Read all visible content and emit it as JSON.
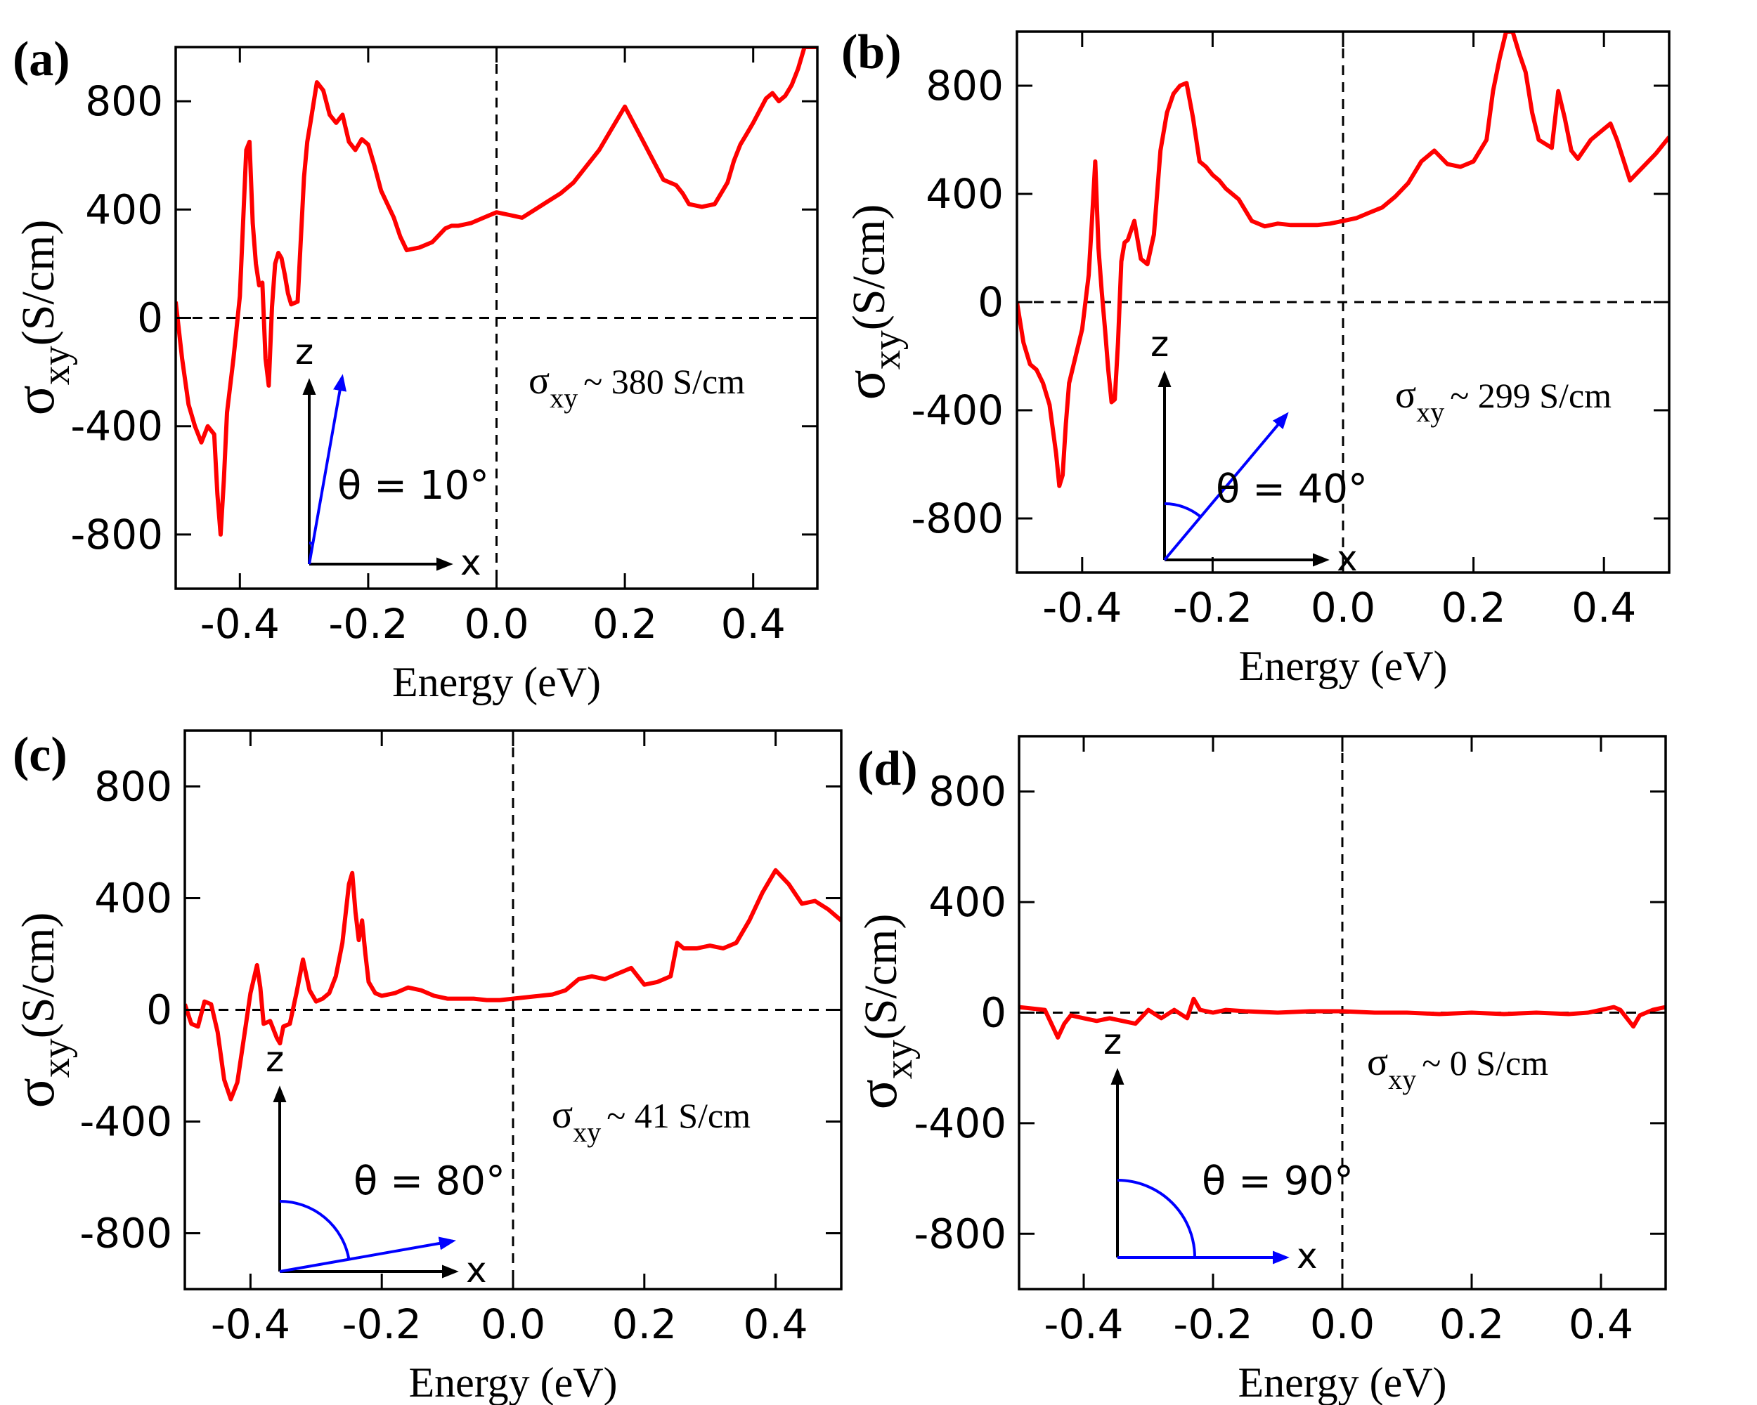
{
  "figure": {
    "axis_titles": {
      "xlabel": "Energy (eV)",
      "ylabel_symbol": "σ",
      "ylabel_subscript": "xy",
      "ylabel_unit": "(S/cm)"
    },
    "inset_axis_labels": {
      "z": "z",
      "x": "x"
    },
    "annotation_prefix": "σ",
    "annotation_subscript": "xy",
    "colors": {
      "curve": "#ff0000",
      "vector": "#0000ff",
      "axes": "#000000"
    }
  },
  "chart_data": [
    {
      "type": "line",
      "panel_label": "(a)",
      "xlabel": "Energy (eV)",
      "ylabel": "σxy(S/cm)",
      "xlim": [
        -0.5,
        0.5
      ],
      "ylim": [
        -1000,
        1000
      ],
      "xticks": [
        -0.4,
        -0.2,
        0.0,
        0.2,
        0.4
      ],
      "xtick_labels": [
        "-0.4",
        "-0.2",
        "0.0",
        "0.2",
        "0.4"
      ],
      "yticks": [
        -800,
        -400,
        0,
        400,
        800
      ],
      "ytick_labels": [
        "-800",
        "-400",
        "0",
        "400",
        "800"
      ],
      "annotation_value": "~ 380 S/cm",
      "theta_label": "θ = 10°",
      "theta_deg": 10,
      "series": [
        {
          "name": "σxy",
          "x": [
            -0.5,
            -0.49,
            -0.48,
            -0.47,
            -0.46,
            -0.45,
            -0.44,
            -0.435,
            -0.43,
            -0.425,
            -0.42,
            -0.41,
            -0.4,
            -0.39,
            -0.385,
            -0.38,
            -0.375,
            -0.37,
            -0.365,
            -0.36,
            -0.355,
            -0.35,
            -0.345,
            -0.34,
            -0.335,
            -0.33,
            -0.325,
            -0.32,
            -0.31,
            -0.3,
            -0.295,
            -0.29,
            -0.28,
            -0.27,
            -0.26,
            -0.25,
            -0.24,
            -0.235,
            -0.23,
            -0.22,
            -0.21,
            -0.2,
            -0.19,
            -0.18,
            -0.17,
            -0.16,
            -0.15,
            -0.14,
            -0.12,
            -0.1,
            -0.08,
            -0.07,
            -0.06,
            -0.04,
            -0.02,
            0.0,
            0.02,
            0.04,
            0.06,
            0.08,
            0.1,
            0.12,
            0.14,
            0.16,
            0.18,
            0.2,
            0.22,
            0.24,
            0.26,
            0.28,
            0.29,
            0.3,
            0.32,
            0.34,
            0.36,
            0.37,
            0.38,
            0.39,
            0.4,
            0.42,
            0.43,
            0.44,
            0.45,
            0.46,
            0.47,
            0.48,
            0.49,
            0.5
          ],
          "y": [
            60,
            -150,
            -320,
            -400,
            -460,
            -400,
            -430,
            -650,
            -800,
            -600,
            -350,
            -150,
            80,
            620,
            650,
            350,
            200,
            120,
            130,
            -150,
            -250,
            40,
            200,
            240,
            220,
            160,
            90,
            50,
            60,
            520,
            650,
            720,
            870,
            840,
            750,
            720,
            750,
            700,
            650,
            620,
            660,
            640,
            560,
            470,
            420,
            370,
            300,
            250,
            260,
            280,
            330,
            340,
            340,
            350,
            370,
            390,
            380,
            370,
            400,
            430,
            460,
            500,
            560,
            620,
            700,
            780,
            690,
            600,
            510,
            490,
            460,
            420,
            410,
            420,
            500,
            580,
            640,
            680,
            720,
            810,
            830,
            800,
            820,
            860,
            920,
            1000,
            1000,
            1000
          ]
        }
      ]
    },
    {
      "type": "line",
      "panel_label": "(b)",
      "xlabel": "Energy (eV)",
      "ylabel": "σxy(S/cm)",
      "xlim": [
        -0.5,
        0.5
      ],
      "ylim": [
        -1000,
        1000
      ],
      "xticks": [
        -0.4,
        -0.2,
        0.0,
        0.2,
        0.4
      ],
      "xtick_labels": [
        "-0.4",
        "-0.2",
        "0.0",
        "0.2",
        "0.4"
      ],
      "yticks": [
        -800,
        -400,
        0,
        400,
        800
      ],
      "ytick_labels": [
        "-800",
        "-400",
        "0",
        "400",
        "800"
      ],
      "annotation_value": "~ 299 S/cm",
      "theta_label": "θ = 40°",
      "theta_deg": 40,
      "series": [
        {
          "name": "σxy",
          "x": [
            -0.5,
            -0.49,
            -0.48,
            -0.47,
            -0.46,
            -0.45,
            -0.44,
            -0.435,
            -0.43,
            -0.425,
            -0.42,
            -0.41,
            -0.4,
            -0.39,
            -0.385,
            -0.38,
            -0.375,
            -0.37,
            -0.365,
            -0.36,
            -0.355,
            -0.35,
            -0.345,
            -0.34,
            -0.335,
            -0.33,
            -0.32,
            -0.31,
            -0.3,
            -0.29,
            -0.28,
            -0.27,
            -0.26,
            -0.25,
            -0.24,
            -0.23,
            -0.22,
            -0.21,
            -0.2,
            -0.19,
            -0.18,
            -0.16,
            -0.14,
            -0.12,
            -0.1,
            -0.08,
            -0.06,
            -0.04,
            -0.02,
            0.0,
            0.02,
            0.04,
            0.06,
            0.08,
            0.1,
            0.12,
            0.14,
            0.16,
            0.18,
            0.2,
            0.22,
            0.23,
            0.24,
            0.25,
            0.26,
            0.27,
            0.28,
            0.29,
            0.3,
            0.32,
            0.33,
            0.34,
            0.35,
            0.36,
            0.38,
            0.4,
            0.41,
            0.42,
            0.44,
            0.46,
            0.48,
            0.5
          ],
          "y": [
            0,
            -150,
            -230,
            -250,
            -300,
            -380,
            -560,
            -680,
            -640,
            -450,
            -300,
            -200,
            -100,
            100,
            300,
            520,
            200,
            40,
            -100,
            -250,
            -370,
            -360,
            -150,
            150,
            220,
            230,
            300,
            160,
            140,
            250,
            560,
            700,
            770,
            800,
            810,
            680,
            520,
            500,
            470,
            450,
            420,
            380,
            300,
            280,
            290,
            285,
            285,
            285,
            290,
            300,
            310,
            330,
            350,
            390,
            440,
            520,
            560,
            510,
            500,
            520,
            600,
            780,
            900,
            1000,
            1000,
            920,
            850,
            700,
            600,
            570,
            780,
            680,
            560,
            530,
            600,
            640,
            660,
            600,
            450,
            500,
            550,
            610
          ]
        }
      ]
    },
    {
      "type": "line",
      "panel_label": "(c)",
      "xlabel": "Energy (eV)",
      "ylabel": "σxy(S/cm)",
      "xlim": [
        -0.5,
        0.5
      ],
      "ylim": [
        -1000,
        1000
      ],
      "xticks": [
        -0.4,
        -0.2,
        0.0,
        0.2,
        0.4
      ],
      "xtick_labels": [
        "-0.4",
        "-0.2",
        "0.0",
        "0.2",
        "0.4"
      ],
      "yticks": [
        -800,
        -400,
        0,
        400,
        800
      ],
      "ytick_labels": [
        "-800",
        "-400",
        "0",
        "400",
        "800"
      ],
      "annotation_value": "~ 41 S/cm",
      "theta_label": "θ = 80°",
      "theta_deg": 80,
      "series": [
        {
          "name": "σxy",
          "x": [
            -0.5,
            -0.49,
            -0.48,
            -0.47,
            -0.46,
            -0.45,
            -0.44,
            -0.43,
            -0.42,
            -0.41,
            -0.4,
            -0.39,
            -0.385,
            -0.38,
            -0.37,
            -0.36,
            -0.355,
            -0.35,
            -0.34,
            -0.33,
            -0.32,
            -0.31,
            -0.3,
            -0.29,
            -0.28,
            -0.27,
            -0.26,
            -0.25,
            -0.245,
            -0.24,
            -0.235,
            -0.23,
            -0.225,
            -0.22,
            -0.21,
            -0.2,
            -0.18,
            -0.16,
            -0.14,
            -0.12,
            -0.1,
            -0.08,
            -0.06,
            -0.04,
            -0.02,
            0.0,
            0.02,
            0.04,
            0.06,
            0.08,
            0.1,
            0.12,
            0.14,
            0.16,
            0.18,
            0.2,
            0.22,
            0.24,
            0.25,
            0.26,
            0.28,
            0.3,
            0.32,
            0.34,
            0.36,
            0.38,
            0.4,
            0.42,
            0.44,
            0.46,
            0.48,
            0.5
          ],
          "y": [
            20,
            -50,
            -60,
            30,
            20,
            -80,
            -250,
            -320,
            -260,
            -100,
            60,
            160,
            80,
            -50,
            -40,
            -100,
            -120,
            -60,
            -50,
            60,
            180,
            70,
            30,
            40,
            60,
            120,
            240,
            450,
            490,
            350,
            250,
            320,
            200,
            100,
            60,
            50,
            60,
            80,
            70,
            50,
            40,
            40,
            40,
            35,
            35,
            40,
            45,
            50,
            55,
            70,
            110,
            120,
            110,
            130,
            150,
            90,
            100,
            120,
            240,
            220,
            220,
            230,
            220,
            240,
            320,
            420,
            500,
            450,
            380,
            390,
            360,
            320
          ]
        }
      ]
    },
    {
      "type": "line",
      "panel_label": "(d)",
      "xlabel": "Energy (eV)",
      "ylabel": "σxy(S/cm)",
      "xlim": [
        -0.5,
        0.5
      ],
      "ylim": [
        -1000,
        1000
      ],
      "xticks": [
        -0.4,
        -0.2,
        0.0,
        0.2,
        0.4
      ],
      "xtick_labels": [
        "-0.4",
        "-0.2",
        "0.0",
        "0.2",
        "0.4"
      ],
      "yticks": [
        -800,
        -400,
        0,
        400,
        800
      ],
      "ytick_labels": [
        "-800",
        "-400",
        "0",
        "400",
        "800"
      ],
      "annotation_value": "~ 0 S/cm",
      "theta_label": "θ = 90°",
      "theta_deg": 90,
      "series": [
        {
          "name": "σxy",
          "x": [
            -0.5,
            -0.48,
            -0.46,
            -0.45,
            -0.44,
            -0.43,
            -0.42,
            -0.4,
            -0.38,
            -0.36,
            -0.34,
            -0.32,
            -0.3,
            -0.28,
            -0.26,
            -0.24,
            -0.23,
            -0.22,
            -0.2,
            -0.18,
            -0.15,
            -0.1,
            -0.05,
            0.0,
            0.05,
            0.1,
            0.15,
            0.2,
            0.25,
            0.3,
            0.35,
            0.38,
            0.4,
            0.42,
            0.43,
            0.44,
            0.45,
            0.46,
            0.48,
            0.5
          ],
          "y": [
            20,
            15,
            10,
            -40,
            -90,
            -40,
            -10,
            -20,
            -30,
            -20,
            -30,
            -40,
            10,
            -20,
            10,
            -20,
            50,
            10,
            0,
            10,
            5,
            0,
            5,
            5,
            0,
            0,
            -5,
            0,
            -5,
            0,
            -5,
            0,
            10,
            20,
            10,
            -20,
            -50,
            -10,
            10,
            20
          ]
        }
      ]
    }
  ]
}
